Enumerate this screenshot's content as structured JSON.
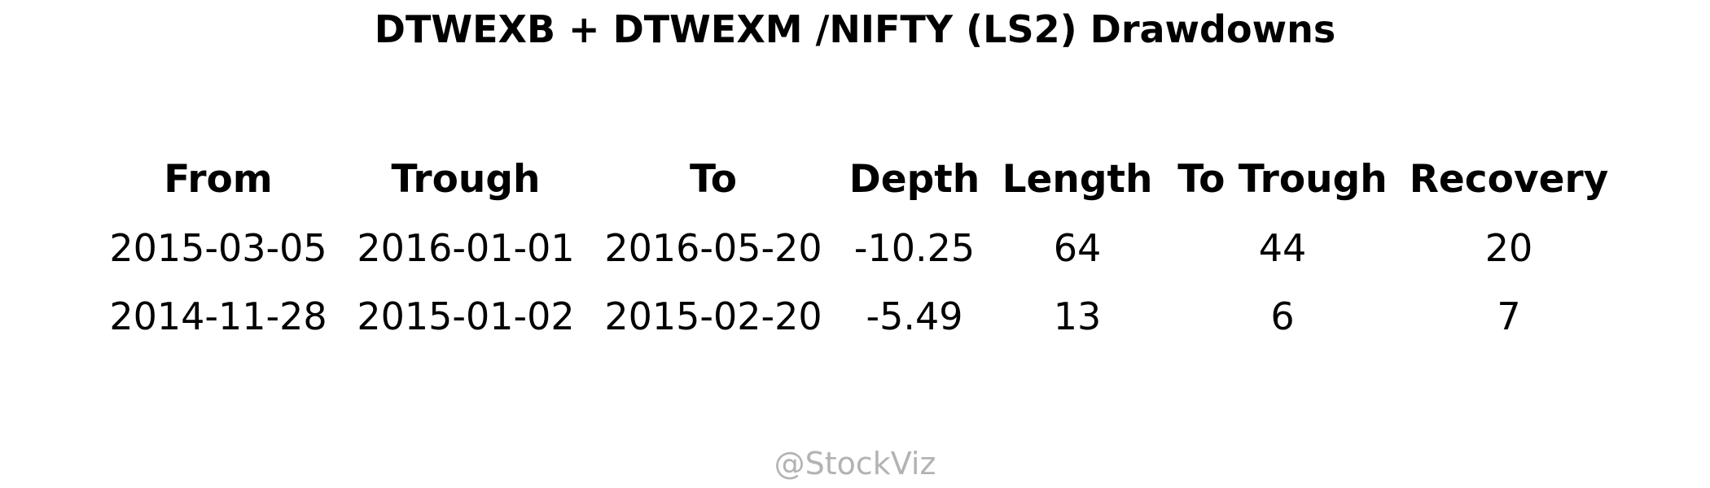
{
  "chart_data": {
    "type": "table",
    "title": "DTWEXB + DTWEXM /NIFTY (LS2) Drawdowns",
    "columns": [
      "From",
      "Trough",
      "To",
      "Depth",
      "Length",
      "To Trough",
      "Recovery"
    ],
    "rows": [
      [
        "2015-03-05",
        "2016-01-01",
        "2016-05-20",
        "-10.25",
        "64",
        "44",
        "20"
      ],
      [
        "2014-11-28",
        "2015-01-02",
        "2015-02-20",
        "-5.49",
        "13",
        "6",
        "7"
      ]
    ]
  },
  "watermark": "@StockViz",
  "colors": {
    "text": "#000000",
    "watermark": "#b3b3b3",
    "background": "#ffffff"
  }
}
